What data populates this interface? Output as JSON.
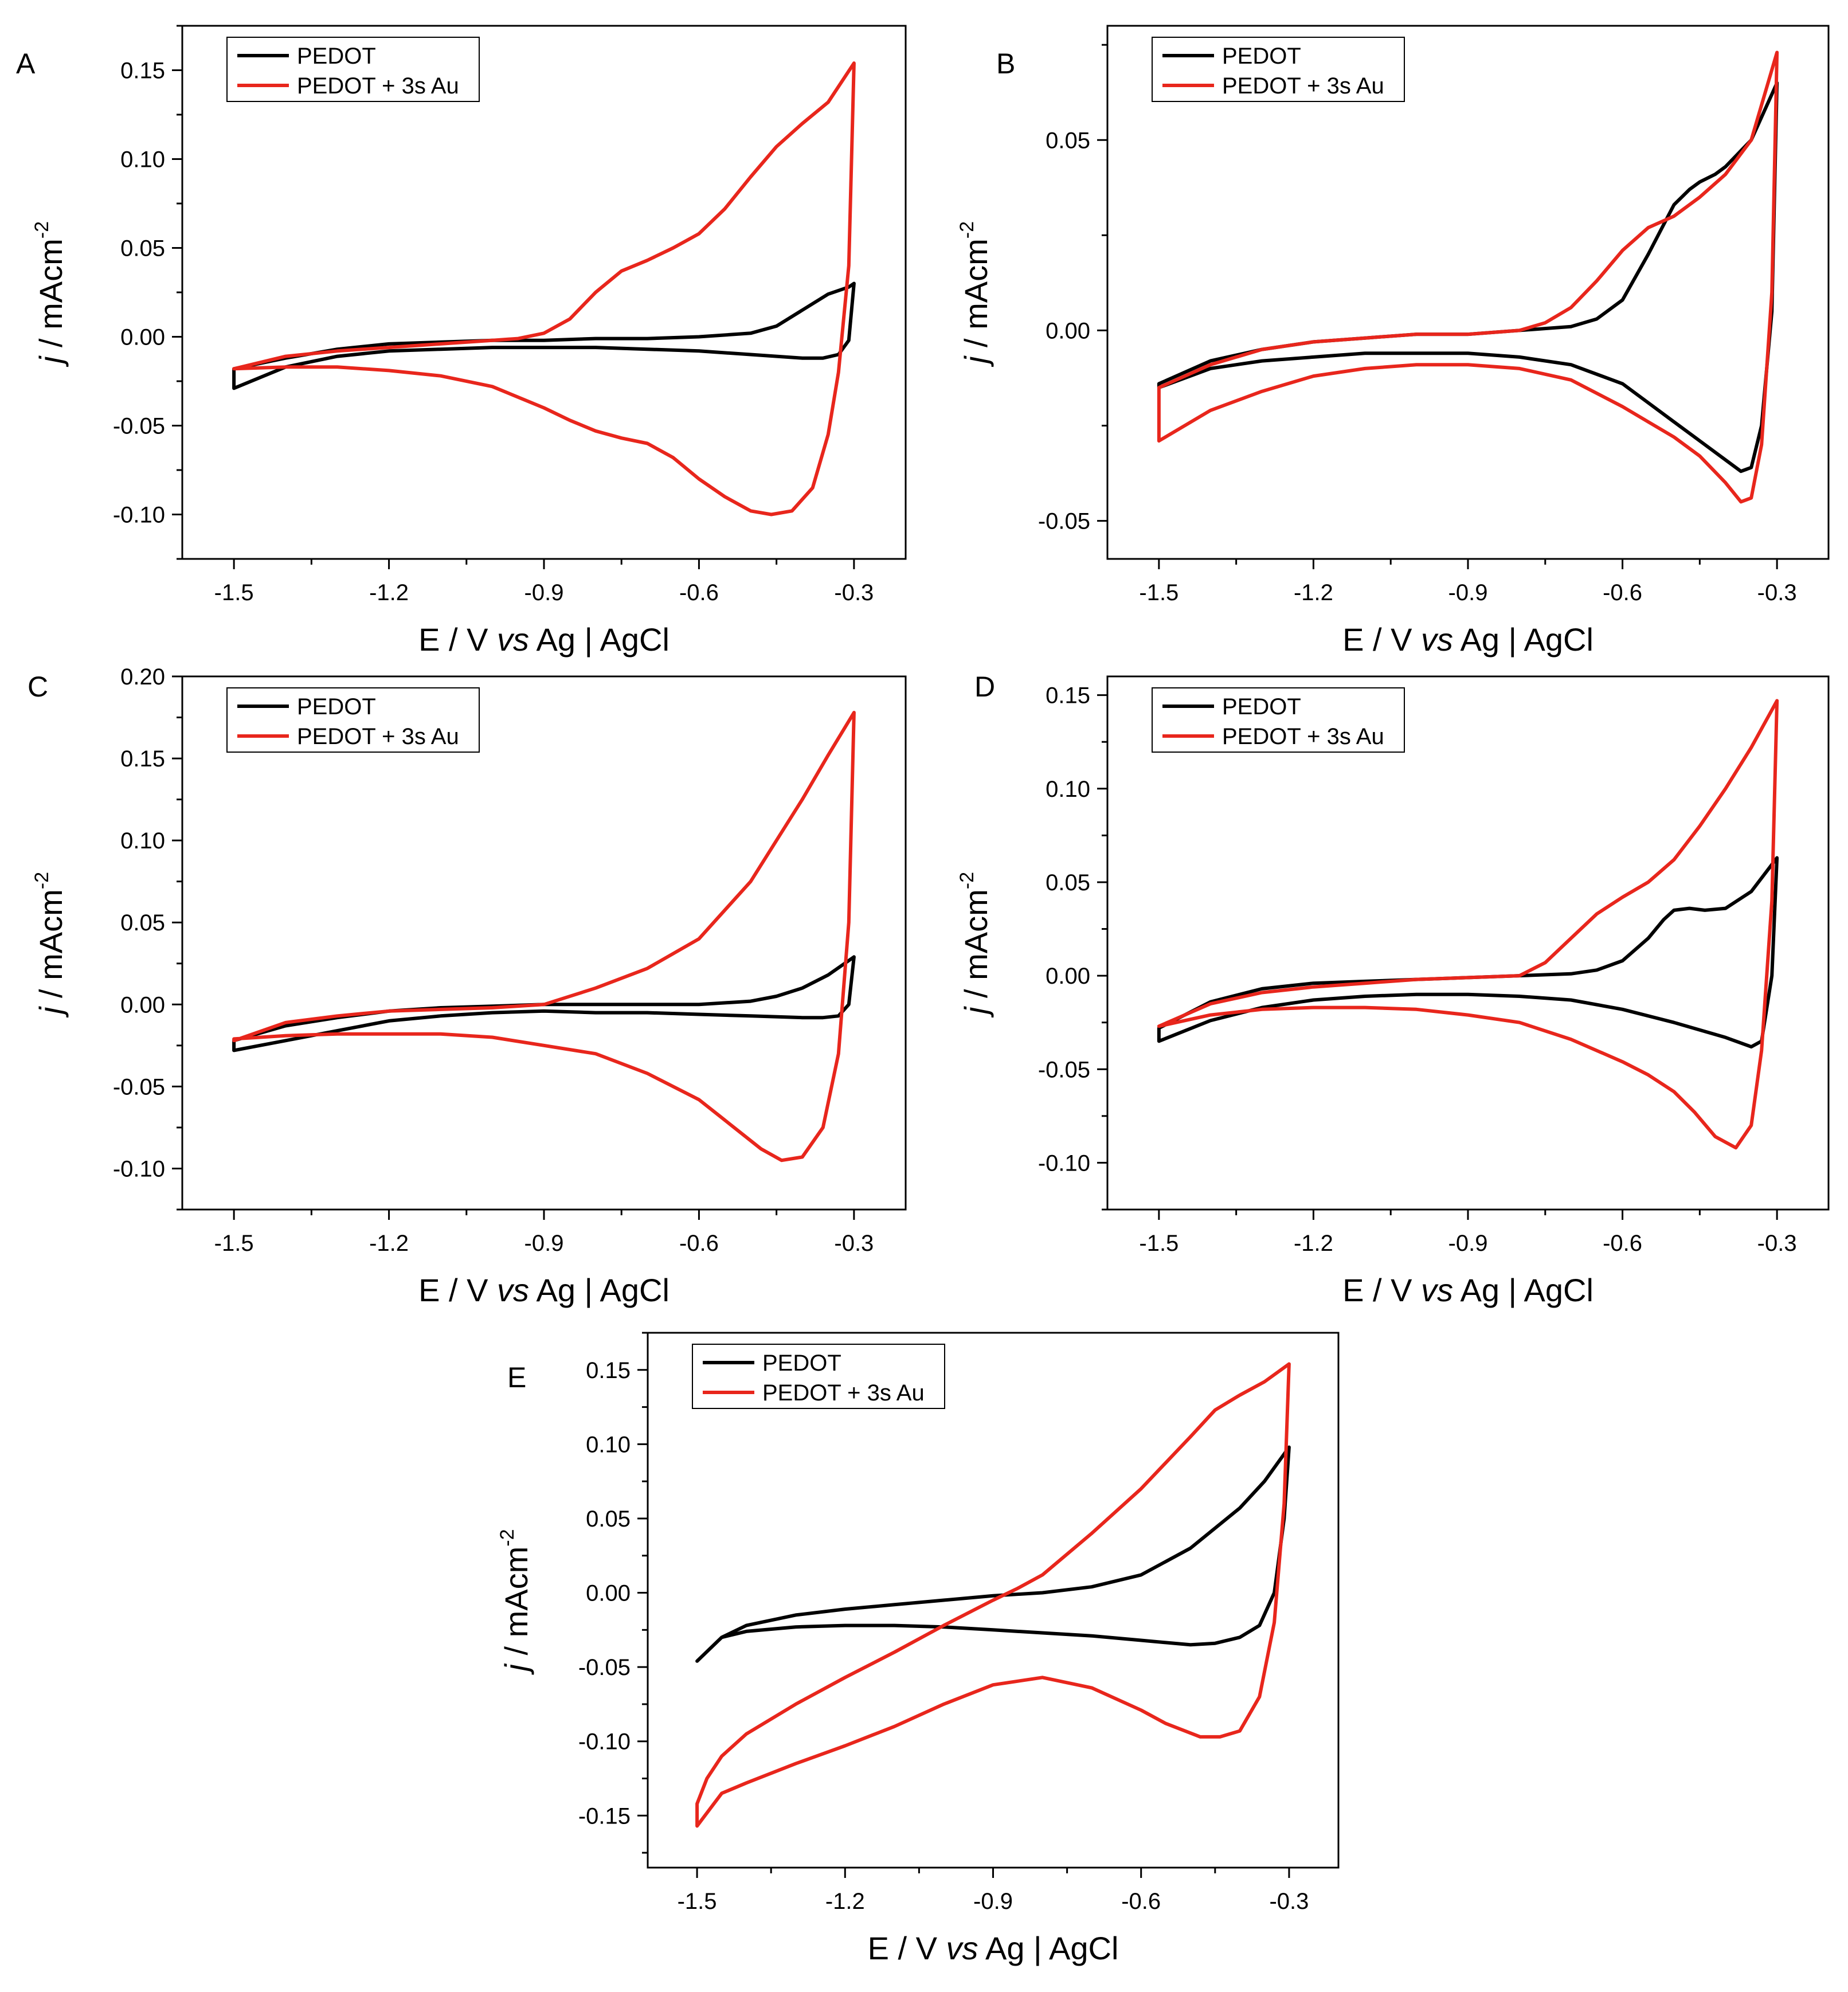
{
  "figure": {
    "series_names": [
      "PEDOT",
      "PEDOT + 3s Au"
    ],
    "colors": {
      "PEDOT": "#000000",
      "PEDOT + 3s Au": "#e8261c"
    }
  },
  "chart_data": [
    {
      "panel": "A",
      "type": "line",
      "xlabel": "E / V vs Ag | AgCl",
      "ylabel": "j / mAcm-2",
      "xlim": [
        -1.6,
        -0.2
      ],
      "ylim": [
        -0.125,
        0.175
      ],
      "xticks": [
        -1.5,
        -1.2,
        -0.9,
        -0.6,
        -0.3
      ],
      "xtick_labels": [
        "-1.5",
        "-1.2",
        "-0.9",
        "-0.6",
        "-0.3"
      ],
      "yticks": [
        -0.1,
        -0.05,
        0.0,
        0.05,
        0.1,
        0.15
      ],
      "ytick_labels": [
        "-0.10",
        "-0.05",
        "0.00",
        "0.05",
        "0.10",
        "0.15"
      ],
      "legend": {
        "placement": "top-left",
        "entries": [
          "PEDOT",
          "PEDOT + 3s Au"
        ]
      },
      "series": [
        {
          "name": "PEDOT",
          "color": "#000000",
          "x": [
            -1.5,
            -1.4,
            -1.3,
            -1.2,
            -1.1,
            -1.0,
            -0.9,
            -0.8,
            -0.7,
            -0.6,
            -0.5,
            -0.45,
            -0.4,
            -0.35,
            -0.31,
            -0.3,
            -0.31,
            -0.33,
            -0.36,
            -0.4,
            -0.5,
            -0.6,
            -0.7,
            -0.8,
            -0.9,
            -1.0,
            -1.1,
            -1.2,
            -1.3,
            -1.4,
            -1.5
          ],
          "y": [
            -0.018,
            -0.012,
            -0.007,
            -0.004,
            -0.003,
            -0.002,
            -0.002,
            -0.001,
            -0.001,
            0.0,
            0.002,
            0.006,
            0.015,
            0.024,
            0.028,
            0.03,
            -0.002,
            -0.01,
            -0.012,
            -0.012,
            -0.01,
            -0.008,
            -0.007,
            -0.006,
            -0.006,
            -0.006,
            -0.007,
            -0.008,
            -0.011,
            -0.017,
            -0.029
          ]
        },
        {
          "name": "PEDOT + 3s Au",
          "color": "#e8261c",
          "x": [
            -1.5,
            -1.4,
            -1.3,
            -1.2,
            -1.1,
            -1.0,
            -0.95,
            -0.9,
            -0.85,
            -0.8,
            -0.75,
            -0.7,
            -0.65,
            -0.6,
            -0.55,
            -0.5,
            -0.45,
            -0.4,
            -0.35,
            -0.3,
            -0.31,
            -0.33,
            -0.35,
            -0.38,
            -0.42,
            -0.46,
            -0.5,
            -0.55,
            -0.6,
            -0.65,
            -0.7,
            -0.75,
            -0.8,
            -0.85,
            -0.9,
            -1.0,
            -1.1,
            -1.2,
            -1.3,
            -1.4,
            -1.5
          ],
          "y": [
            -0.018,
            -0.011,
            -0.008,
            -0.006,
            -0.004,
            -0.002,
            -0.001,
            0.002,
            0.01,
            0.025,
            0.037,
            0.043,
            0.05,
            0.058,
            0.072,
            0.09,
            0.107,
            0.12,
            0.132,
            0.154,
            0.04,
            -0.02,
            -0.055,
            -0.085,
            -0.098,
            -0.1,
            -0.098,
            -0.09,
            -0.08,
            -0.068,
            -0.06,
            -0.057,
            -0.053,
            -0.047,
            -0.04,
            -0.028,
            -0.022,
            -0.019,
            -0.017,
            -0.017,
            -0.018
          ]
        }
      ]
    },
    {
      "panel": "B",
      "type": "line",
      "xlabel": "E / V vs Ag | AgCl",
      "ylabel": "j / mAcm-2",
      "xlim": [
        -1.6,
        -0.2
      ],
      "ylim": [
        -0.06,
        0.08
      ],
      "xticks": [
        -1.5,
        -1.2,
        -0.9,
        -0.6,
        -0.3
      ],
      "xtick_labels": [
        "-1.5",
        "-1.2",
        "-0.9",
        "-0.6",
        "-0.3"
      ],
      "yticks": [
        -0.05,
        0.0,
        0.05
      ],
      "ytick_labels": [
        "-0.05",
        "0.00",
        "0.05"
      ],
      "legend": {
        "placement": "top-left",
        "entries": [
          "PEDOT",
          "PEDOT + 3s Au"
        ]
      },
      "series": [
        {
          "name": "PEDOT",
          "color": "#000000",
          "x": [
            -1.5,
            -1.4,
            -1.3,
            -1.2,
            -1.1,
            -1.0,
            -0.9,
            -0.8,
            -0.7,
            -0.65,
            -0.6,
            -0.55,
            -0.5,
            -0.47,
            -0.45,
            -0.42,
            -0.4,
            -0.35,
            -0.3,
            -0.31,
            -0.33,
            -0.35,
            -0.37,
            -0.4,
            -0.45,
            -0.5,
            -0.55,
            -0.6,
            -0.7,
            -0.8,
            -0.9,
            -1.0,
            -1.1,
            -1.2,
            -1.3,
            -1.4,
            -1.5
          ],
          "y": [
            -0.014,
            -0.008,
            -0.005,
            -0.003,
            -0.002,
            -0.001,
            -0.001,
            0.0,
            0.001,
            0.003,
            0.008,
            0.02,
            0.033,
            0.037,
            0.039,
            0.041,
            0.043,
            0.05,
            0.065,
            0.005,
            -0.025,
            -0.036,
            -0.037,
            -0.034,
            -0.029,
            -0.024,
            -0.019,
            -0.014,
            -0.009,
            -0.007,
            -0.006,
            -0.006,
            -0.006,
            -0.007,
            -0.008,
            -0.01,
            -0.015
          ]
        },
        {
          "name": "PEDOT + 3s Au",
          "color": "#e8261c",
          "x": [
            -1.5,
            -1.4,
            -1.3,
            -1.2,
            -1.1,
            -1.0,
            -0.9,
            -0.8,
            -0.75,
            -0.7,
            -0.65,
            -0.6,
            -0.55,
            -0.5,
            -0.45,
            -0.4,
            -0.35,
            -0.3,
            -0.31,
            -0.33,
            -0.35,
            -0.37,
            -0.4,
            -0.45,
            -0.5,
            -0.55,
            -0.6,
            -0.7,
            -0.8,
            -0.9,
            -1.0,
            -1.1,
            -1.2,
            -1.3,
            -1.4,
            -1.5
          ],
          "y": [
            -0.015,
            -0.009,
            -0.005,
            -0.003,
            -0.002,
            -0.001,
            -0.001,
            0.0,
            0.002,
            0.006,
            0.013,
            0.021,
            0.027,
            0.03,
            0.035,
            0.041,
            0.05,
            0.073,
            0.01,
            -0.03,
            -0.044,
            -0.045,
            -0.04,
            -0.033,
            -0.028,
            -0.024,
            -0.02,
            -0.013,
            -0.01,
            -0.009,
            -0.009,
            -0.01,
            -0.012,
            -0.016,
            -0.021,
            -0.029
          ]
        }
      ]
    },
    {
      "panel": "C",
      "type": "line",
      "xlabel": "E / V vs Ag | AgCl",
      "ylabel": "j / mAcm-2",
      "xlim": [
        -1.6,
        -0.2
      ],
      "ylim": [
        -0.125,
        0.2
      ],
      "xticks": [
        -1.5,
        -1.2,
        -0.9,
        -0.6,
        -0.3
      ],
      "xtick_labels": [
        "-1.5",
        "-1.2",
        "-0.9",
        "-0.6",
        "-0.3"
      ],
      "yticks": [
        -0.1,
        -0.05,
        0.0,
        0.05,
        0.1,
        0.15,
        0.2
      ],
      "ytick_labels": [
        "-0.10",
        "-0.05",
        "0.00",
        "0.05",
        "0.10",
        "0.15",
        "0.20"
      ],
      "legend": {
        "placement": "top-left",
        "entries": [
          "PEDOT",
          "PEDOT + 3s Au"
        ]
      },
      "series": [
        {
          "name": "PEDOT",
          "color": "#000000",
          "x": [
            -1.5,
            -1.4,
            -1.3,
            -1.2,
            -1.1,
            -1.0,
            -0.9,
            -0.8,
            -0.7,
            -0.6,
            -0.5,
            -0.45,
            -0.4,
            -0.35,
            -0.3,
            -0.31,
            -0.33,
            -0.36,
            -0.4,
            -0.5,
            -0.6,
            -0.7,
            -0.8,
            -0.9,
            -1.0,
            -1.1,
            -1.2,
            -1.3,
            -1.4,
            -1.5
          ],
          "y": [
            -0.022,
            -0.013,
            -0.008,
            -0.004,
            -0.002,
            -0.001,
            0.0,
            0.0,
            0.0,
            0.0,
            0.002,
            0.005,
            0.01,
            0.018,
            0.029,
            0.0,
            -0.007,
            -0.008,
            -0.008,
            -0.007,
            -0.006,
            -0.005,
            -0.005,
            -0.004,
            -0.005,
            -0.007,
            -0.01,
            -0.016,
            -0.022,
            -0.028
          ]
        },
        {
          "name": "PEDOT + 3s Au",
          "color": "#e8261c",
          "x": [
            -1.5,
            -1.4,
            -1.3,
            -1.2,
            -1.1,
            -1.0,
            -0.9,
            -0.8,
            -0.7,
            -0.6,
            -0.5,
            -0.45,
            -0.4,
            -0.35,
            -0.3,
            -0.31,
            -0.33,
            -0.36,
            -0.4,
            -0.44,
            -0.48,
            -0.52,
            -0.56,
            -0.6,
            -0.7,
            -0.8,
            -0.9,
            -1.0,
            -1.1,
            -1.2,
            -1.3,
            -1.4,
            -1.5
          ],
          "y": [
            -0.022,
            -0.011,
            -0.007,
            -0.004,
            -0.003,
            -0.002,
            0.0,
            0.01,
            0.022,
            0.04,
            0.075,
            0.1,
            0.125,
            0.152,
            0.178,
            0.05,
            -0.03,
            -0.075,
            -0.093,
            -0.095,
            -0.088,
            -0.078,
            -0.068,
            -0.058,
            -0.042,
            -0.03,
            -0.025,
            -0.02,
            -0.018,
            -0.018,
            -0.018,
            -0.019,
            -0.021
          ]
        }
      ]
    },
    {
      "panel": "D",
      "type": "line",
      "xlabel": "E / V vs Ag | AgCl",
      "ylabel": "j / mAcm-2",
      "xlim": [
        -1.6,
        -0.2
      ],
      "ylim": [
        -0.125,
        0.16
      ],
      "xticks": [
        -1.5,
        -1.2,
        -0.9,
        -0.6,
        -0.3
      ],
      "xtick_labels": [
        "-1.5",
        "-1.2",
        "-0.9",
        "-0.6",
        "-0.3"
      ],
      "yticks": [
        -0.1,
        -0.05,
        0.0,
        0.05,
        0.1,
        0.15
      ],
      "ytick_labels": [
        "-0.10",
        "-0.05",
        "0.00",
        "0.05",
        "0.10",
        "0.15"
      ],
      "legend": {
        "placement": "top-left",
        "entries": [
          "PEDOT",
          "PEDOT + 3s Au"
        ]
      },
      "series": [
        {
          "name": "PEDOT",
          "color": "#000000",
          "x": [
            -1.5,
            -1.4,
            -1.3,
            -1.2,
            -1.1,
            -1.0,
            -0.9,
            -0.8,
            -0.7,
            -0.65,
            -0.6,
            -0.55,
            -0.52,
            -0.5,
            -0.47,
            -0.44,
            -0.4,
            -0.35,
            -0.3,
            -0.31,
            -0.33,
            -0.35,
            -0.4,
            -0.5,
            -0.6,
            -0.7,
            -0.8,
            -0.9,
            -1.0,
            -1.1,
            -1.2,
            -1.3,
            -1.4,
            -1.5
          ],
          "y": [
            -0.028,
            -0.014,
            -0.007,
            -0.004,
            -0.003,
            -0.002,
            -0.001,
            0.0,
            0.001,
            0.003,
            0.008,
            0.02,
            0.03,
            0.035,
            0.036,
            0.035,
            0.036,
            0.045,
            0.063,
            0.0,
            -0.035,
            -0.038,
            -0.033,
            -0.025,
            -0.018,
            -0.013,
            -0.011,
            -0.01,
            -0.01,
            -0.011,
            -0.013,
            -0.017,
            -0.024,
            -0.035
          ]
        },
        {
          "name": "PEDOT + 3s Au",
          "color": "#e8261c",
          "x": [
            -1.5,
            -1.4,
            -1.3,
            -1.2,
            -1.1,
            -1.0,
            -0.9,
            -0.8,
            -0.75,
            -0.7,
            -0.65,
            -0.6,
            -0.55,
            -0.5,
            -0.45,
            -0.4,
            -0.35,
            -0.3,
            -0.31,
            -0.33,
            -0.35,
            -0.38,
            -0.42,
            -0.46,
            -0.5,
            -0.55,
            -0.6,
            -0.7,
            -0.8,
            -0.9,
            -1.0,
            -1.1,
            -1.2,
            -1.3,
            -1.4,
            -1.5
          ],
          "y": [
            -0.027,
            -0.015,
            -0.009,
            -0.006,
            -0.004,
            -0.002,
            -0.001,
            0.0,
            0.007,
            0.02,
            0.033,
            0.042,
            0.05,
            0.062,
            0.08,
            0.1,
            0.122,
            0.147,
            0.04,
            -0.04,
            -0.08,
            -0.092,
            -0.086,
            -0.073,
            -0.062,
            -0.053,
            -0.046,
            -0.034,
            -0.025,
            -0.021,
            -0.018,
            -0.017,
            -0.017,
            -0.018,
            -0.021,
            -0.027
          ]
        }
      ]
    },
    {
      "panel": "E",
      "type": "line",
      "xlabel": "E / V vs Ag | AgCl",
      "ylabel": "j / mAcm-2",
      "xlim": [
        -1.6,
        -0.2
      ],
      "ylim": [
        -0.185,
        0.175
      ],
      "xticks": [
        -1.5,
        -1.2,
        -0.9,
        -0.6,
        -0.3
      ],
      "xtick_labels": [
        "-1.5",
        "-1.2",
        "-0.9",
        "-0.6",
        "-0.3"
      ],
      "yticks": [
        -0.15,
        -0.1,
        -0.05,
        0.0,
        0.05,
        0.1,
        0.15
      ],
      "ytick_labels": [
        "-0.15",
        "-0.10",
        "-0.05",
        "0.00",
        "0.05",
        "0.10",
        "0.15"
      ],
      "legend": {
        "placement": "top-left",
        "entries": [
          "PEDOT",
          "PEDOT + 3s Au"
        ]
      },
      "series": [
        {
          "name": "PEDOT",
          "color": "#000000",
          "x": [
            -1.5,
            -1.45,
            -1.4,
            -1.3,
            -1.2,
            -1.1,
            -1.0,
            -0.9,
            -0.8,
            -0.7,
            -0.6,
            -0.5,
            -0.4,
            -0.35,
            -0.3,
            -0.31,
            -0.33,
            -0.36,
            -0.4,
            -0.45,
            -0.5,
            -0.6,
            -0.7,
            -0.8,
            -0.9,
            -1.0,
            -1.1,
            -1.2,
            -1.3,
            -1.4,
            -1.45,
            -1.5
          ],
          "y": [
            -0.046,
            -0.03,
            -0.022,
            -0.015,
            -0.011,
            -0.008,
            -0.005,
            -0.002,
            0.0,
            0.004,
            0.012,
            0.03,
            0.057,
            0.075,
            0.098,
            0.05,
            0.0,
            -0.022,
            -0.03,
            -0.034,
            -0.035,
            -0.032,
            -0.029,
            -0.027,
            -0.025,
            -0.023,
            -0.022,
            -0.022,
            -0.023,
            -0.026,
            -0.03,
            -0.046
          ]
        },
        {
          "name": "PEDOT + 3s Au",
          "color": "#e8261c",
          "x": [
            -1.5,
            -1.48,
            -1.45,
            -1.4,
            -1.3,
            -1.2,
            -1.1,
            -1.0,
            -0.9,
            -0.85,
            -0.8,
            -0.7,
            -0.6,
            -0.5,
            -0.45,
            -0.4,
            -0.35,
            -0.3,
            -0.31,
            -0.33,
            -0.36,
            -0.4,
            -0.44,
            -0.48,
            -0.55,
            -0.6,
            -0.7,
            -0.8,
            -0.9,
            -1.0,
            -1.1,
            -1.2,
            -1.3,
            -1.4,
            -1.45,
            -1.5
          ],
          "y": [
            -0.142,
            -0.125,
            -0.11,
            -0.095,
            -0.075,
            -0.057,
            -0.04,
            -0.022,
            -0.005,
            0.003,
            0.012,
            0.04,
            0.07,
            0.105,
            0.123,
            0.133,
            0.142,
            0.154,
            0.06,
            -0.02,
            -0.07,
            -0.093,
            -0.097,
            -0.097,
            -0.088,
            -0.079,
            -0.064,
            -0.057,
            -0.062,
            -0.075,
            -0.09,
            -0.103,
            -0.115,
            -0.128,
            -0.135,
            -0.157
          ]
        }
      ]
    }
  ]
}
